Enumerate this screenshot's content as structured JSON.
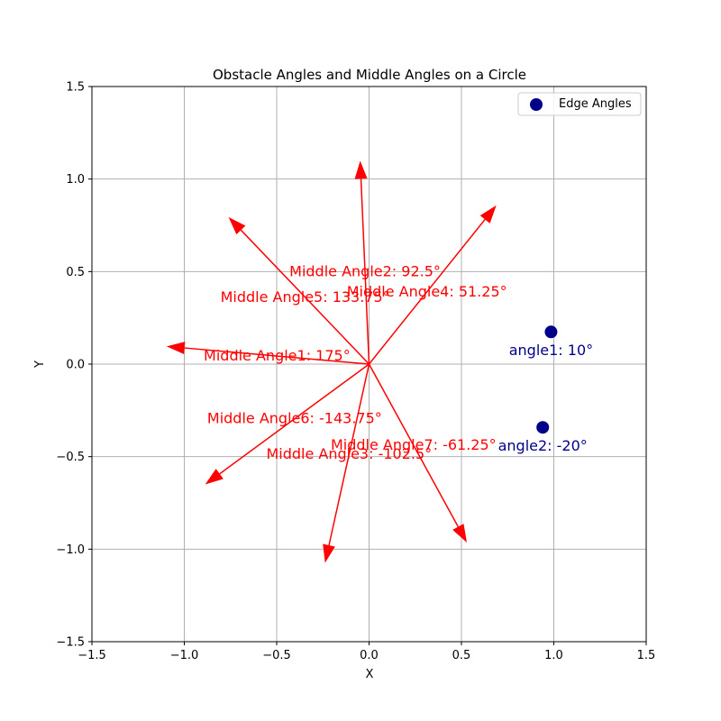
{
  "chart_data": {
    "type": "scatter",
    "title": "Obstacle Angles and Middle Angles on a Circle",
    "xlabel": "X",
    "ylabel": "Y",
    "xlim": [
      -1.5,
      1.5
    ],
    "ylim": [
      -1.5,
      1.5
    ],
    "xticks": [
      -1.5,
      -1.0,
      -0.5,
      0.0,
      0.5,
      1.0,
      1.5
    ],
    "yticks": [
      -1.5,
      -1.0,
      -0.5,
      0.0,
      0.5,
      1.0,
      1.5
    ],
    "xtick_labels": [
      "−1.5",
      "−1.0",
      "−0.5",
      "0.0",
      "0.5",
      "1.0",
      "1.5"
    ],
    "ytick_labels": [
      "−1.5",
      "−1.0",
      "−0.5",
      "0.0",
      "0.5",
      "1.0",
      "1.5"
    ],
    "grid": true,
    "legend": {
      "position": "top-right",
      "entries": [
        "Edge Angles"
      ]
    },
    "colors": {
      "edge": "#00008b",
      "arrows": "#ff0000",
      "grid": "#b0b0b0"
    },
    "edge_points": [
      {
        "x": 0.985,
        "y": 0.174,
        "label": "angle1: 10°"
      },
      {
        "x": 0.94,
        "y": -0.342,
        "label": "angle2: -20°"
      }
    ],
    "middle_angles": [
      {
        "label": "Middle Angle1: 175°",
        "angle_deg": 175
      },
      {
        "label": "Middle Angle2: 92.5°",
        "angle_deg": 92.5
      },
      {
        "label": "Middle Angle3: -102.5°",
        "angle_deg": -102.5
      },
      {
        "label": "Middle Angle4: 51.25°",
        "angle_deg": 51.25
      },
      {
        "label": "Middle Angle5: 133.75°",
        "angle_deg": 133.75
      },
      {
        "label": "Middle Angle6: -143.75°",
        "angle_deg": -143.75
      },
      {
        "label": "Middle Angle7: -61.25°",
        "angle_deg": -61.25
      }
    ]
  }
}
